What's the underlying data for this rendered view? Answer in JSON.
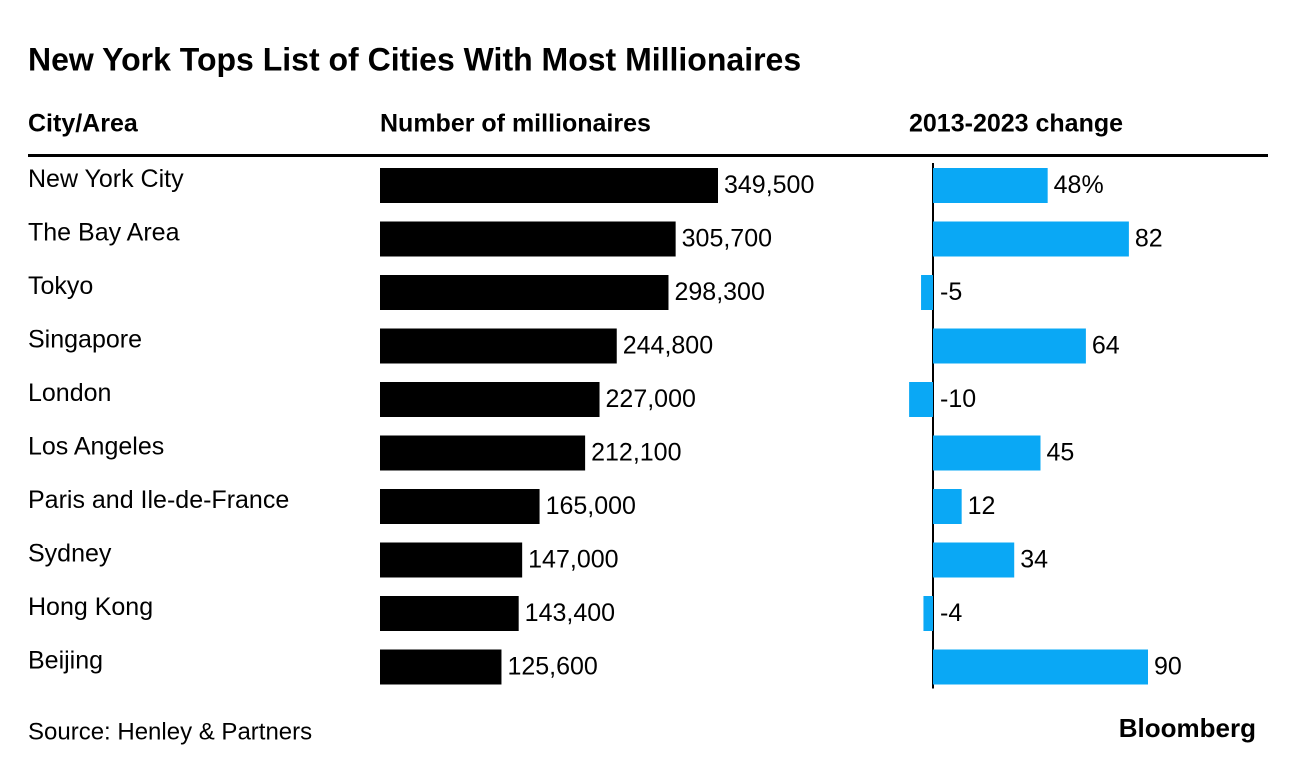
{
  "chart_data": {
    "type": "bar-table",
    "title": "New York Tops List of Cities With Most Millionaires",
    "category_label": "City/Area",
    "categories": [
      "New York City",
      "The Bay Area",
      "Tokyo",
      "Singapore",
      "London",
      "Los Angeles",
      "Paris and Ile-de-France",
      "Sydney",
      "Hong Kong",
      "Beijing"
    ],
    "series": [
      {
        "name": "Number of millionaires",
        "color": "#000000",
        "values": [
          349500,
          305700,
          298300,
          244800,
          227000,
          212100,
          165000,
          147000,
          143400,
          125600
        ],
        "value_labels": [
          "349,500",
          "305,700",
          "298,300",
          "244,800",
          "227,000",
          "212,100",
          "165,000",
          "147,000",
          "143,400",
          "125,600"
        ]
      },
      {
        "name": "2013-2023 change",
        "color": "#0aa8f5",
        "values": [
          48,
          82,
          -5,
          64,
          -10,
          45,
          12,
          34,
          -4,
          90
        ],
        "value_labels": [
          "48%",
          "82",
          "-5",
          "64",
          "-10",
          "45",
          "12",
          "34",
          "-4",
          "90"
        ]
      }
    ],
    "source": "Source: Henley & Partners",
    "logo": "Bloomberg"
  }
}
